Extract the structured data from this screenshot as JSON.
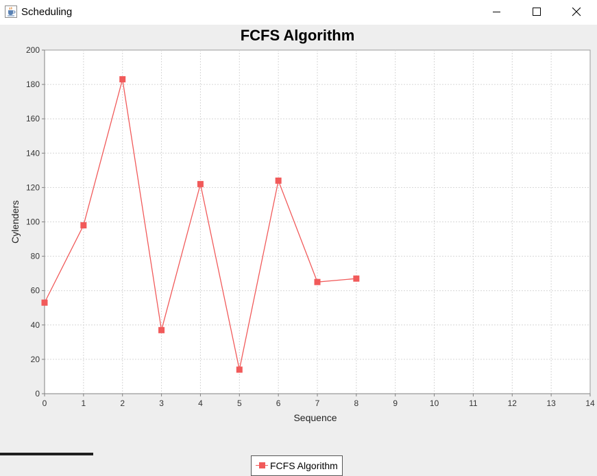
{
  "window": {
    "title": "Scheduling",
    "icon": "java-coffee-cup-icon"
  },
  "window_controls": [
    "minimize-icon",
    "maximize-icon",
    "close-icon"
  ],
  "chart_data": {
    "type": "line",
    "title": "FCFS Algorithm",
    "xlabel": "Sequence",
    "ylabel": "Cylenders",
    "xlim": [
      0,
      14
    ],
    "ylim": [
      0,
      200
    ],
    "x_ticks": [
      0,
      1,
      2,
      3,
      4,
      5,
      6,
      7,
      8,
      9,
      10,
      11,
      12,
      13,
      14
    ],
    "y_ticks": [
      0,
      20,
      40,
      60,
      80,
      100,
      120,
      140,
      160,
      180,
      200
    ],
    "grid": true,
    "legend_position": "bottom",
    "series": [
      {
        "name": "FCFS Algorithm",
        "color": "#f15a5a",
        "marker": "square",
        "x": [
          0,
          1,
          2,
          3,
          4,
          5,
          6,
          7,
          8
        ],
        "y": [
          53,
          98,
          183,
          37,
          122,
          14,
          124,
          65,
          67
        ]
      }
    ]
  }
}
